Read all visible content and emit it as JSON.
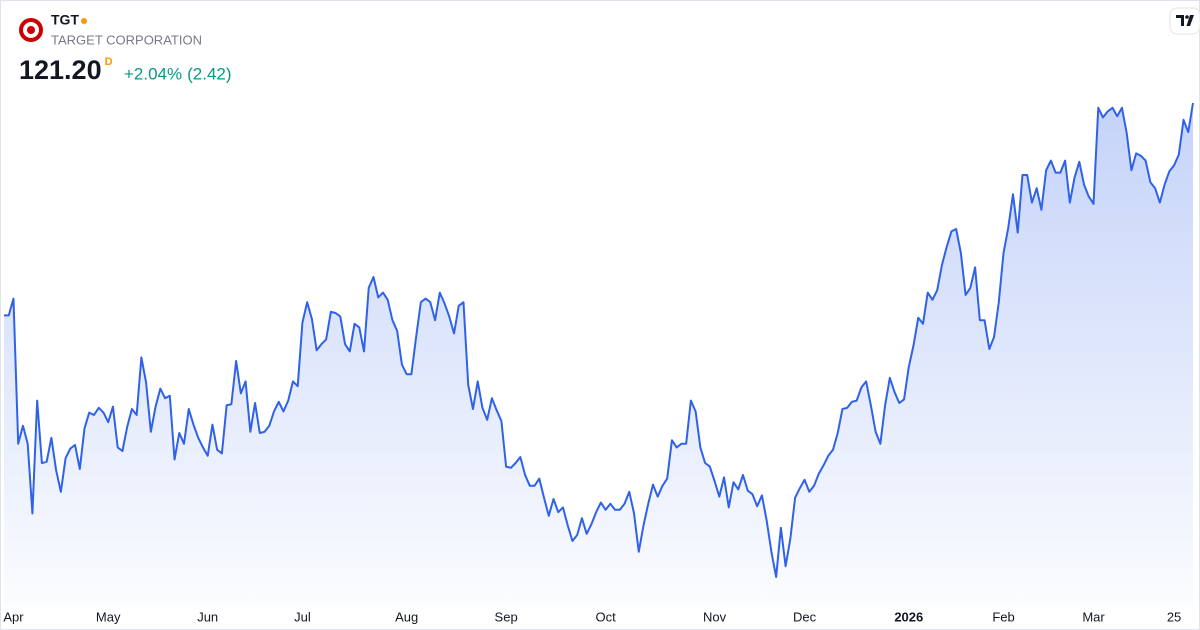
{
  "header": {
    "symbol": "TGT",
    "name": "TARGET CORPORATION",
    "price": "121.20",
    "price_flag": "D",
    "change_percent": "+2.04%",
    "change": "(2.42)"
  },
  "chart_data": {
    "type": "area",
    "color": "#2f62e8",
    "values": [
      103.5,
      103.5,
      104.9,
      92.8,
      94.3,
      92.8,
      87.0,
      96.4,
      91.2,
      91.3,
      93.3,
      90.6,
      88.8,
      91.6,
      92.4,
      92.7,
      90.7,
      94.1,
      95.4,
      95.2,
      95.8,
      95.4,
      94.6,
      95.9,
      92.5,
      92.2,
      94.2,
      95.7,
      95.2,
      100.0,
      97.9,
      93.8,
      95.9,
      97.4,
      96.6,
      96.8,
      91.5,
      93.7,
      92.8,
      95.7,
      94.4,
      93.3,
      92.5,
      91.8,
      94.4,
      92.3,
      92.0,
      96.0,
      96.1,
      99.7,
      97.0,
      98.0,
      93.8,
      96.2,
      93.7,
      93.8,
      94.3,
      95.5,
      96.3,
      95.5,
      96.4,
      98.0,
      97.6,
      102.9,
      104.6,
      103.2,
      100.6,
      101.1,
      101.5,
      103.8,
      103.7,
      103.4,
      101.1,
      100.5,
      102.8,
      102.5,
      100.5,
      105.8,
      106.7,
      105.0,
      105.4,
      104.8,
      103.1,
      102.2,
      99.4,
      98.6,
      98.6,
      101.7,
      104.6,
      104.9,
      104.6,
      103.1,
      105.4,
      104.5,
      103.4,
      102.0,
      104.3,
      104.6,
      97.7,
      95.7,
      98.0,
      95.8,
      94.8,
      96.6,
      95.6,
      94.7,
      90.9,
      90.8,
      91.2,
      91.7,
      90.2,
      89.3,
      89.3,
      89.9,
      88.3,
      86.8,
      88.2,
      87.1,
      87.5,
      86.0,
      84.7,
      85.2,
      86.6,
      85.3,
      86.1,
      87.1,
      87.9,
      87.3,
      87.8,
      87.3,
      87.3,
      87.8,
      88.8,
      87.0,
      83.8,
      86.0,
      87.8,
      89.4,
      88.4,
      89.3,
      89.9,
      93.1,
      92.5,
      92.8,
      92.8,
      96.4,
      95.5,
      92.5,
      91.2,
      90.9,
      89.7,
      88.4,
      90.0,
      87.5,
      89.6,
      89.0,
      90.2,
      88.9,
      88.6,
      87.6,
      88.5,
      86.4,
      83.8,
      81.7,
      85.8,
      82.6,
      84.9,
      88.3,
      89.1,
      89.8,
      88.8,
      89.3,
      90.3,
      91.0,
      91.8,
      92.3,
      93.7,
      95.7,
      95.8,
      96.3,
      96.4,
      97.5,
      98.0,
      96.0,
      93.8,
      92.8,
      96.0,
      98.3,
      97.1,
      96.2,
      96.5,
      99.2,
      101.0,
      103.3,
      102.8,
      105.4,
      104.8,
      105.6,
      107.7,
      109.2,
      110.5,
      110.7,
      108.7,
      105.2,
      105.8,
      107.5,
      103.1,
      103.1,
      100.7,
      101.7,
      104.6,
      108.7,
      110.8,
      113.6,
      110.4,
      115.2,
      115.2,
      112.9,
      114.1,
      112.3,
      115.6,
      116.4,
      115.4,
      115.4,
      116.4,
      112.9,
      115.0,
      116.3,
      114.4,
      113.4,
      112.8,
      120.8,
      120.0,
      120.5,
      120.8,
      120.1,
      120.8,
      118.7,
      115.6,
      117.0,
      116.8,
      116.4,
      114.6,
      114.1,
      112.9,
      114.4,
      115.5,
      116.0,
      116.9,
      119.8,
      118.78,
      121.2
    ],
    "xticks": [
      {
        "value": 2,
        "label": "Apr"
      },
      {
        "value": 22,
        "label": "May"
      },
      {
        "value": 43,
        "label": "Jun"
      },
      {
        "value": 63,
        "label": "Jul"
      },
      {
        "value": 85,
        "label": "Aug"
      },
      {
        "value": 106,
        "label": "Sep"
      },
      {
        "value": 127,
        "label": "Oct"
      },
      {
        "value": 150,
        "label": "Nov"
      },
      {
        "value": 169,
        "label": "Dec"
      },
      {
        "value": 191,
        "label": "2026"
      },
      {
        "value": 211,
        "label": "Feb"
      },
      {
        "value": 230,
        "label": "Mar"
      },
      {
        "value": 247,
        "label": "25"
      }
    ]
  }
}
